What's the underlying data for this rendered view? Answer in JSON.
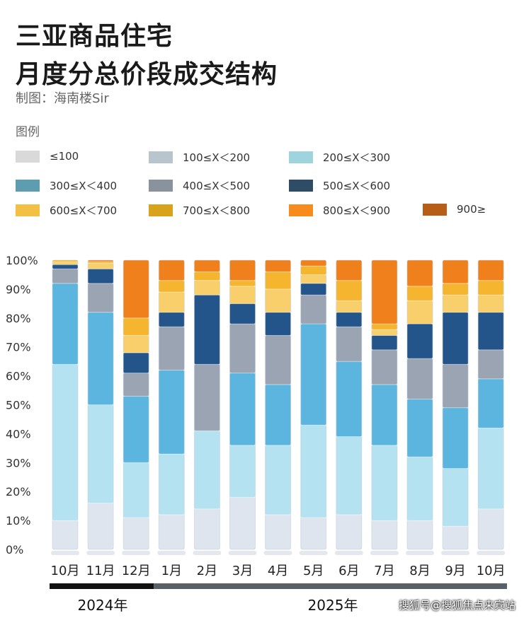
{
  "title_line1": "三亚商品住宅",
  "title_line2": "月度分总价段成交结构",
  "credit": "制图：海南楼Sir",
  "legend_title": "图例",
  "watermark": "搜狐号@搜狐焦点来宾站",
  "colors": {
    "legend": [
      "#d9d9d9",
      "#b9c5cd",
      "#9fd4dd",
      "#5e9db0",
      "#8a939d",
      "#2e4c66",
      "#f2c044",
      "#d9a21b",
      "#f88b1e",
      "#b65d18"
    ],
    "bars": [
      "#dfe5ee",
      "#cbe4ef",
      "#b4e2f0",
      "#5cb5de",
      "#9aa4b2",
      "#23548a",
      "#f8cf6a",
      "#f5b52e",
      "#f0801c",
      "#c86010"
    ]
  },
  "chart_data": {
    "type": "bar",
    "stacked": true,
    "title": "三亚商品住宅 月度分总价段成交结构",
    "ylim": [
      0,
      100
    ],
    "yticks": [
      "0%",
      "10%",
      "20%",
      "30%",
      "40%",
      "50%",
      "60%",
      "70%",
      "80%",
      "90%",
      "100%"
    ],
    "categories": [
      "10月",
      "11月",
      "12月",
      "1月",
      "2月",
      "3月",
      "4月",
      "5月",
      "6月",
      "7月",
      "8月",
      "9月",
      "10月"
    ],
    "years": [
      {
        "label": "2024年",
        "span": 3
      },
      {
        "label": "2025年",
        "span": 10
      }
    ],
    "series": [
      {
        "name": "≤100",
        "values": [
          10,
          16,
          11,
          12,
          14,
          18,
          12,
          11,
          12,
          10,
          10,
          8,
          14
        ]
      },
      {
        "name": "100≤X＜200",
        "values": [
          0,
          0,
          0,
          0,
          0,
          0,
          0,
          0,
          0,
          0,
          0,
          0,
          0
        ]
      },
      {
        "name": "200≤X＜300",
        "values": [
          54,
          34,
          19,
          21,
          27,
          18,
          24,
          32,
          27,
          26,
          22,
          20,
          28
        ]
      },
      {
        "name": "300≤X＜400",
        "values": [
          28,
          32,
          23,
          29,
          0,
          25,
          21,
          35,
          26,
          21,
          20,
          21,
          17
        ]
      },
      {
        "name": "400≤X＜500",
        "values": [
          5,
          10,
          8,
          15,
          23,
          17,
          17,
          10,
          12,
          12,
          14,
          15,
          10
        ]
      },
      {
        "name": "500≤X＜600",
        "values": [
          1.5,
          5,
          7,
          5,
          24,
          7,
          8,
          4,
          5,
          5,
          12,
          18,
          13
        ]
      },
      {
        "name": "600≤X＜700",
        "values": [
          1,
          2,
          6,
          7,
          5,
          6,
          8,
          3,
          4,
          2,
          8,
          6,
          6
        ]
      },
      {
        "name": "700≤X＜800",
        "values": [
          0.5,
          0.5,
          6,
          4,
          3,
          2,
          6,
          3,
          7,
          2,
          5,
          4,
          5
        ]
      },
      {
        "name": "800≤X＜900",
        "values": [
          0,
          0.5,
          20,
          7,
          4,
          7,
          4,
          2,
          7,
          22,
          9,
          8,
          7
        ]
      },
      {
        "name": "900≥",
        "values": [
          0,
          0,
          0,
          0,
          0,
          0,
          0,
          0,
          0,
          0,
          0,
          0,
          0
        ]
      }
    ],
    "legend": "top"
  }
}
